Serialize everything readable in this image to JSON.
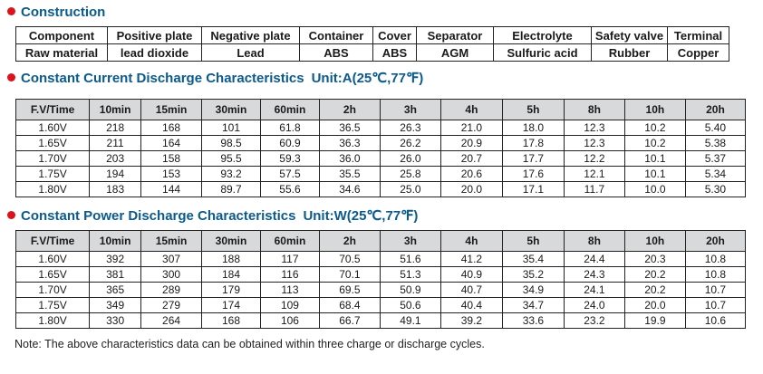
{
  "construction": {
    "title": "Construction",
    "headers": [
      "Component",
      "Positive plate",
      "Negative plate",
      "Container",
      "Cover",
      "Separator",
      "Electrolyte",
      "Safety valve",
      "Terminal"
    ],
    "values": [
      "Raw material",
      "lead dioxide",
      "Lead",
      "ABS",
      "ABS",
      "AGM",
      "Sulfuric acid",
      "Rubber",
      "Copper"
    ]
  },
  "current": {
    "title": "Constant Current Discharge Characteristics",
    "unit": "Unit:A(25℃,77℉)",
    "headers": [
      "F.V/Time",
      "10min",
      "15min",
      "30min",
      "60min",
      "2h",
      "3h",
      "4h",
      "5h",
      "8h",
      "10h",
      "20h"
    ],
    "rows": [
      [
        "1.60V",
        "218",
        "168",
        "101",
        "61.8",
        "36.5",
        "26.3",
        "21.0",
        "18.0",
        "12.3",
        "10.2",
        "5.40"
      ],
      [
        "1.65V",
        "211",
        "164",
        "98.5",
        "60.9",
        "36.3",
        "26.2",
        "20.9",
        "17.8",
        "12.3",
        "10.2",
        "5.38"
      ],
      [
        "1.70V",
        "203",
        "158",
        "95.5",
        "59.3",
        "36.0",
        "26.0",
        "20.7",
        "17.7",
        "12.2",
        "10.1",
        "5.37"
      ],
      [
        "1.75V",
        "194",
        "153",
        "93.2",
        "57.5",
        "35.5",
        "25.8",
        "20.6",
        "17.6",
        "12.1",
        "10.1",
        "5.34"
      ],
      [
        "1.80V",
        "183",
        "144",
        "89.7",
        "55.6",
        "34.6",
        "25.0",
        "20.0",
        "17.1",
        "11.7",
        "10.0",
        "5.30"
      ]
    ]
  },
  "power": {
    "title": "Constant Power Discharge Characteristics",
    "unit": "Unit:W(25℃,77℉)",
    "headers": [
      "F.V/Time",
      "10min",
      "15min",
      "30min",
      "60min",
      "2h",
      "3h",
      "4h",
      "5h",
      "8h",
      "10h",
      "20h"
    ],
    "rows": [
      [
        "1.60V",
        "392",
        "307",
        "188",
        "117",
        "70.5",
        "51.6",
        "41.2",
        "35.4",
        "24.4",
        "20.3",
        "10.8"
      ],
      [
        "1.65V",
        "381",
        "300",
        "184",
        "116",
        "70.1",
        "51.3",
        "40.9",
        "35.2",
        "24.3",
        "20.2",
        "10.8"
      ],
      [
        "1.70V",
        "365",
        "289",
        "179",
        "113",
        "69.5",
        "50.9",
        "40.7",
        "34.9",
        "24.1",
        "20.2",
        "10.7"
      ],
      [
        "1.75V",
        "349",
        "279",
        "174",
        "109",
        "68.4",
        "50.6",
        "40.4",
        "34.7",
        "24.0",
        "20.0",
        "10.7"
      ],
      [
        "1.80V",
        "330",
        "264",
        "168",
        "106",
        "66.7",
        "49.1",
        "39.2",
        "33.6",
        "23.2",
        "19.9",
        "10.6"
      ]
    ]
  },
  "note": "Note: The above characteristics data can be obtained within three charge or discharge cycles.",
  "colors": {
    "accent": "#d9141c",
    "title": "#0b5a8c",
    "header_bg": "#d7d9da"
  }
}
